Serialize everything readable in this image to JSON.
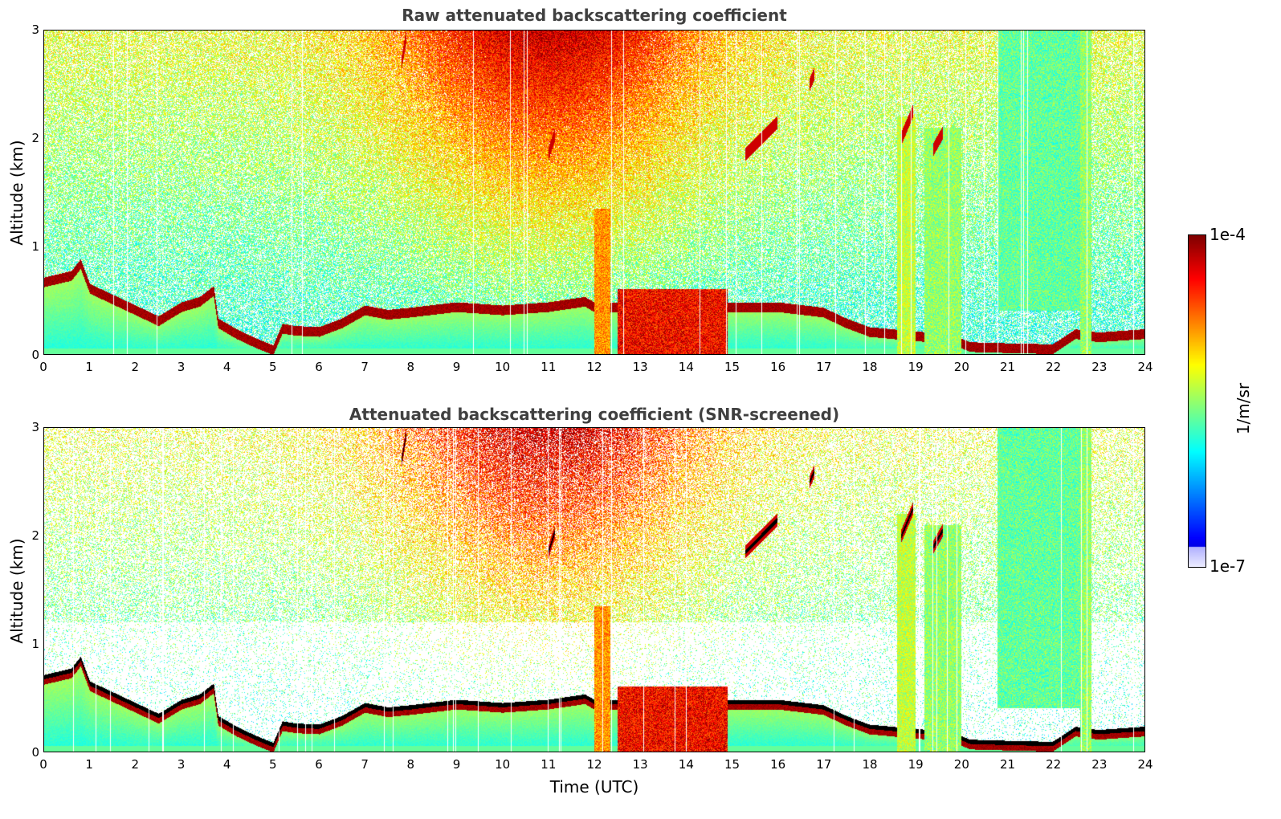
{
  "chart_data": [
    {
      "type": "heatmap",
      "title": "Raw attenuated backscattering coefficient",
      "xlabel": "",
      "ylabel": "Altitude (km)",
      "xlim": [
        0,
        24
      ],
      "ylim": [
        0,
        3
      ],
      "xticks": [
        "0",
        "1",
        "2",
        "3",
        "4",
        "5",
        "6",
        "7",
        "8",
        "9",
        "10",
        "11",
        "12",
        "13",
        "14",
        "15",
        "16",
        "17",
        "18",
        "19",
        "20",
        "21",
        "22",
        "23",
        "24"
      ],
      "yticks": [
        "0",
        "1",
        "2",
        "3"
      ],
      "colorscale": "jet",
      "zlim": [
        "1e-7",
        "1e-4"
      ],
      "zscale": "log",
      "screened": false
    },
    {
      "type": "heatmap",
      "title": "Attenuated backscattering coefficient (SNR-screened)",
      "xlabel": "Time (UTC)",
      "ylabel": "Altitude (km)",
      "xlim": [
        0,
        24
      ],
      "ylim": [
        0,
        3
      ],
      "xticks": [
        "0",
        "1",
        "2",
        "3",
        "4",
        "5",
        "6",
        "7",
        "8",
        "9",
        "10",
        "11",
        "12",
        "13",
        "14",
        "15",
        "16",
        "17",
        "18",
        "19",
        "20",
        "21",
        "22",
        "23",
        "24"
      ],
      "yticks": [
        "0",
        "1",
        "2",
        "3"
      ],
      "colorscale": "jet",
      "zlim": [
        "1e-7",
        "1e-4"
      ],
      "zscale": "log",
      "screened": true
    }
  ],
  "colorbar": {
    "label": "1/m/sr",
    "max_label": "1e-4",
    "min_label": "1e-7"
  },
  "features": {
    "boundary_layer_top_km": [
      [
        0,
        0.68
      ],
      [
        0.6,
        0.74
      ],
      [
        0.8,
        0.85
      ],
      [
        1.0,
        0.62
      ],
      [
        1.5,
        0.52
      ],
      [
        2.0,
        0.42
      ],
      [
        2.5,
        0.32
      ],
      [
        3.0,
        0.45
      ],
      [
        3.4,
        0.5
      ],
      [
        3.7,
        0.6
      ],
      [
        3.8,
        0.3
      ],
      [
        4.2,
        0.2
      ],
      [
        4.6,
        0.12
      ],
      [
        5.0,
        0.05
      ],
      [
        5.2,
        0.25
      ],
      [
        5.5,
        0.23
      ],
      [
        6.0,
        0.22
      ],
      [
        6.5,
        0.3
      ],
      [
        7.0,
        0.42
      ],
      [
        7.5,
        0.38
      ],
      [
        8.0,
        0.4
      ],
      [
        9.0,
        0.45
      ],
      [
        10.0,
        0.42
      ],
      [
        11.0,
        0.45
      ],
      [
        11.8,
        0.5
      ],
      [
        12.0,
        0.45
      ],
      [
        15.0,
        0.45
      ],
      [
        16.0,
        0.45
      ],
      [
        17.0,
        0.4
      ],
      [
        17.5,
        0.3
      ],
      [
        18.0,
        0.22
      ],
      [
        18.5,
        0.2
      ],
      [
        19.8,
        0.15
      ],
      [
        20.2,
        0.08
      ],
      [
        21.0,
        0.07
      ],
      [
        22.0,
        0.06
      ],
      [
        22.5,
        0.2
      ],
      [
        23.0,
        0.17
      ],
      [
        24.0,
        0.2
      ]
    ],
    "elevated_layers": [
      {
        "t": [
          15.3,
          16.0
        ],
        "h": [
          1.85,
          2.15
        ]
      },
      {
        "t": [
          11.0,
          11.15
        ],
        "h": [
          1.85,
          2.05
        ]
      },
      {
        "t": [
          18.7,
          18.95
        ],
        "h": [
          2.0,
          2.25
        ]
      },
      {
        "t": [
          19.4,
          19.6
        ],
        "h": [
          1.9,
          2.05
        ]
      },
      {
        "t": [
          16.7,
          16.8
        ],
        "h": [
          2.5,
          2.6
        ]
      },
      {
        "t": [
          7.8,
          7.9
        ],
        "h": [
          2.7,
          2.95
        ]
      }
    ],
    "convective_columns": [
      {
        "t": [
          12.0,
          12.35
        ],
        "h": [
          0,
          1.35
        ],
        "level": 0.72
      },
      {
        "t": [
          12.5,
          14.9
        ],
        "h": [
          0,
          0.6
        ],
        "level": 0.85
      },
      {
        "t": [
          18.6,
          19.0
        ],
        "h": [
          0,
          2.2
        ],
        "level": 0.55
      },
      {
        "t": [
          19.2,
          20.0
        ],
        "h": [
          0,
          2.1
        ],
        "level": 0.5
      },
      {
        "t": [
          20.8,
          22.6
        ],
        "h": [
          0.4,
          3.0
        ],
        "level": 0.45
      },
      {
        "t": [
          22.6,
          22.85
        ],
        "h": [
          0,
          3.0
        ],
        "level": 0.5
      }
    ]
  }
}
